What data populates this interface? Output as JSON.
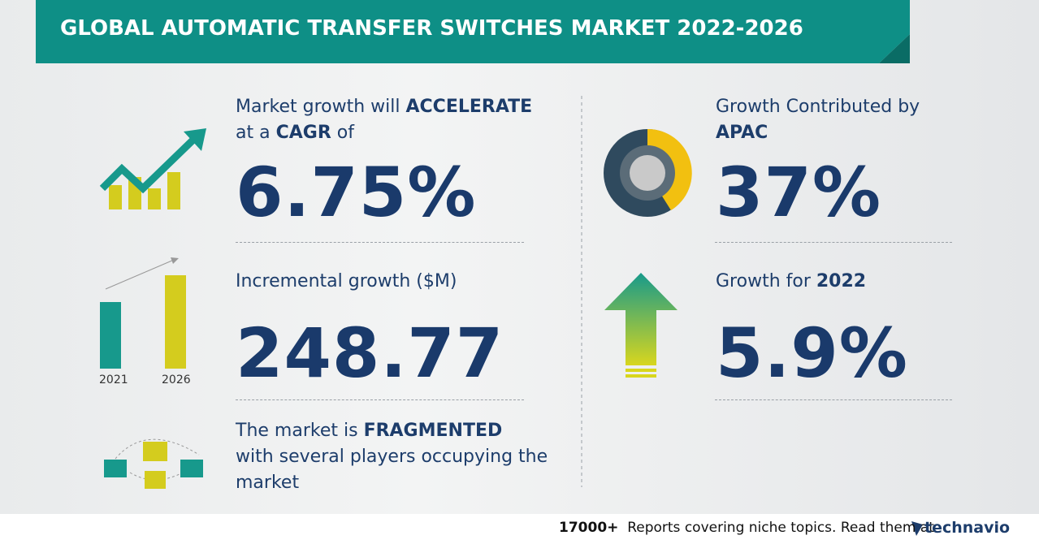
{
  "header": {
    "title": "GLOBAL AUTOMATIC TRANSFER SWITCHES MARKET 2022-2026"
  },
  "cagr": {
    "line1_pre": "Market growth will",
    "line1_bold": "ACCELERATE",
    "line2_pre": "at a",
    "line2_bold": "CAGR",
    "line2_post": "of",
    "value": "6.75%"
  },
  "incremental": {
    "label": "Incremental growth ($M)",
    "value": "248.77",
    "year_start": "2021",
    "year_end": "2026"
  },
  "structure": {
    "pre": "The market is",
    "bold": "FRAGMENTED",
    "rest": "with several players occupying the market"
  },
  "region": {
    "label": "Growth Contributed by",
    "bold": "APAC",
    "value": "37%"
  },
  "yoy": {
    "label": "Growth for",
    "bold": "2022",
    "value": "5.9%"
  },
  "footer": {
    "count": "17000+",
    "text": "Reports covering niche topics. Read them at",
    "brand": "technavio"
  }
}
